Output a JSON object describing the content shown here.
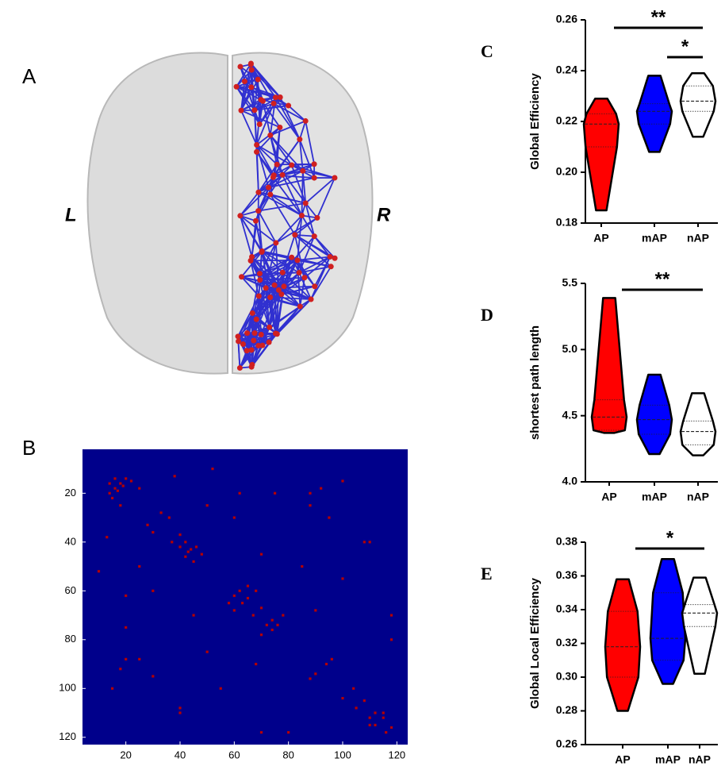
{
  "panel_A": {
    "label": "A",
    "left": "L",
    "right": "R"
  },
  "chart_data": [
    {
      "type": "matrix",
      "panel_label": "B",
      "background": "#00008b",
      "color": "#b40000",
      "xlim": [
        4,
        124
      ],
      "ylim": [
        2,
        123
      ],
      "y_inverted": true,
      "xticks": [
        20,
        40,
        60,
        80,
        100,
        120
      ],
      "yticks": [
        20,
        40,
        60,
        80,
        100,
        120
      ],
      "x": [
        16,
        18,
        20,
        17,
        22,
        25,
        38,
        40,
        42,
        44,
        46,
        45,
        36,
        33,
        60,
        63,
        65,
        68,
        70,
        72,
        76,
        78,
        90,
        96,
        100,
        105,
        110,
        112,
        115,
        118,
        20,
        30,
        45,
        55,
        68,
        80,
        10,
        25,
        40,
        92,
        88,
        108,
        60,
        50,
        75,
        100,
        118,
        85,
        14,
        16,
        14,
        19,
        15,
        18,
        13,
        37,
        40,
        43,
        42,
        48,
        30,
        28,
        62,
        65,
        58,
        60,
        67,
        74,
        74,
        70,
        94,
        88,
        104,
        108,
        112,
        115,
        110,
        116,
        62,
        95,
        70,
        100,
        90,
        118,
        52,
        88,
        110,
        18,
        20,
        40,
        30,
        25,
        20,
        15,
        70,
        50
      ],
      "y": [
        14,
        16,
        14,
        19,
        15,
        18,
        13,
        37,
        40,
        43,
        42,
        48,
        30,
        28,
        62,
        65,
        58,
        60,
        67,
        74,
        74,
        70,
        94,
        88,
        104,
        108,
        112,
        115,
        110,
        116,
        62,
        95,
        70,
        100,
        90,
        118,
        52,
        88,
        110,
        18,
        20,
        40,
        30,
        25,
        20,
        15,
        70,
        50,
        16,
        18,
        20,
        17,
        22,
        25,
        38,
        40,
        42,
        44,
        46,
        45,
        36,
        33,
        60,
        63,
        65,
        68,
        70,
        72,
        76,
        78,
        90,
        96,
        100,
        105,
        110,
        112,
        115,
        118,
        20,
        30,
        45,
        55,
        68,
        80,
        10,
        25,
        40,
        92,
        88,
        108,
        60,
        50,
        75,
        100,
        118,
        85
      ]
    },
    {
      "type": "violin",
      "panel_label": "C",
      "ylabel": "Global Efficiency",
      "categories": [
        "AP",
        "mAP",
        "nAP"
      ],
      "colors": [
        "#ff0000",
        "#0000ff",
        "#ffffff"
      ],
      "min": [
        0.185,
        0.208,
        0.214
      ],
      "q1": [
        0.21,
        0.219,
        0.224
      ],
      "median": [
        0.219,
        0.224,
        0.228
      ],
      "q3": [
        0.223,
        0.227,
        0.234
      ],
      "max": [
        0.229,
        0.238,
        0.239
      ],
      "ylim": [
        0.18,
        0.26
      ],
      "yticks": [
        0.18,
        {
          "value": 0.2,
          "label": "0.20"
        },
        0.22,
        0.24,
        0.26
      ],
      "annotations": [
        {
          "text": "**",
          "between": [
            "AP",
            "nAP"
          ]
        },
        {
          "text": "*",
          "between": [
            "mAP",
            "nAP"
          ]
        }
      ]
    },
    {
      "type": "violin",
      "panel_label": "D",
      "ylabel": "shortest path length",
      "categories": [
        "AP",
        "mAP",
        "nAP"
      ],
      "colors": [
        "#ff0000",
        "#0000ff",
        "#ffffff"
      ],
      "min": [
        4.37,
        4.21,
        4.2
      ],
      "q1": [
        4.39,
        4.36,
        4.28
      ],
      "median": [
        4.49,
        4.47,
        4.38
      ],
      "q3": [
        4.62,
        4.58,
        4.46
      ],
      "max": [
        5.39,
        4.81,
        4.67
      ],
      "ylim": [
        4.0,
        5.5
      ],
      "yticks": [
        {
          "value": 4,
          "label": "4.0"
        },
        4.5,
        {
          "value": 5,
          "label": "5.0"
        },
        5.5
      ],
      "annotations": [
        {
          "text": "**",
          "between": [
            "AP",
            "nAP"
          ]
        }
      ]
    },
    {
      "type": "violin",
      "panel_label": "E",
      "ylabel": "Global Local Efficiency",
      "categories": [
        "AP",
        "mAP",
        "nAP"
      ],
      "colors": [
        "#ff0000",
        "#0000ff",
        "#ffffff"
      ],
      "min": [
        0.28,
        0.296,
        0.302
      ],
      "q1": [
        0.3,
        0.31,
        0.33
      ],
      "median": [
        0.318,
        0.323,
        0.338
      ],
      "q3": [
        0.339,
        0.35,
        0.343
      ],
      "max": [
        0.358,
        0.37,
        0.359
      ],
      "ylim": [
        0.26,
        0.38
      ],
      "yticks": [
        0.26,
        0.28,
        {
          "value": 0.3,
          "label": "0.30"
        },
        0.32,
        0.34,
        0.36,
        0.38
      ],
      "annotations": [
        {
          "text": "*",
          "between": [
            "AP",
            "nAP"
          ]
        }
      ]
    }
  ]
}
